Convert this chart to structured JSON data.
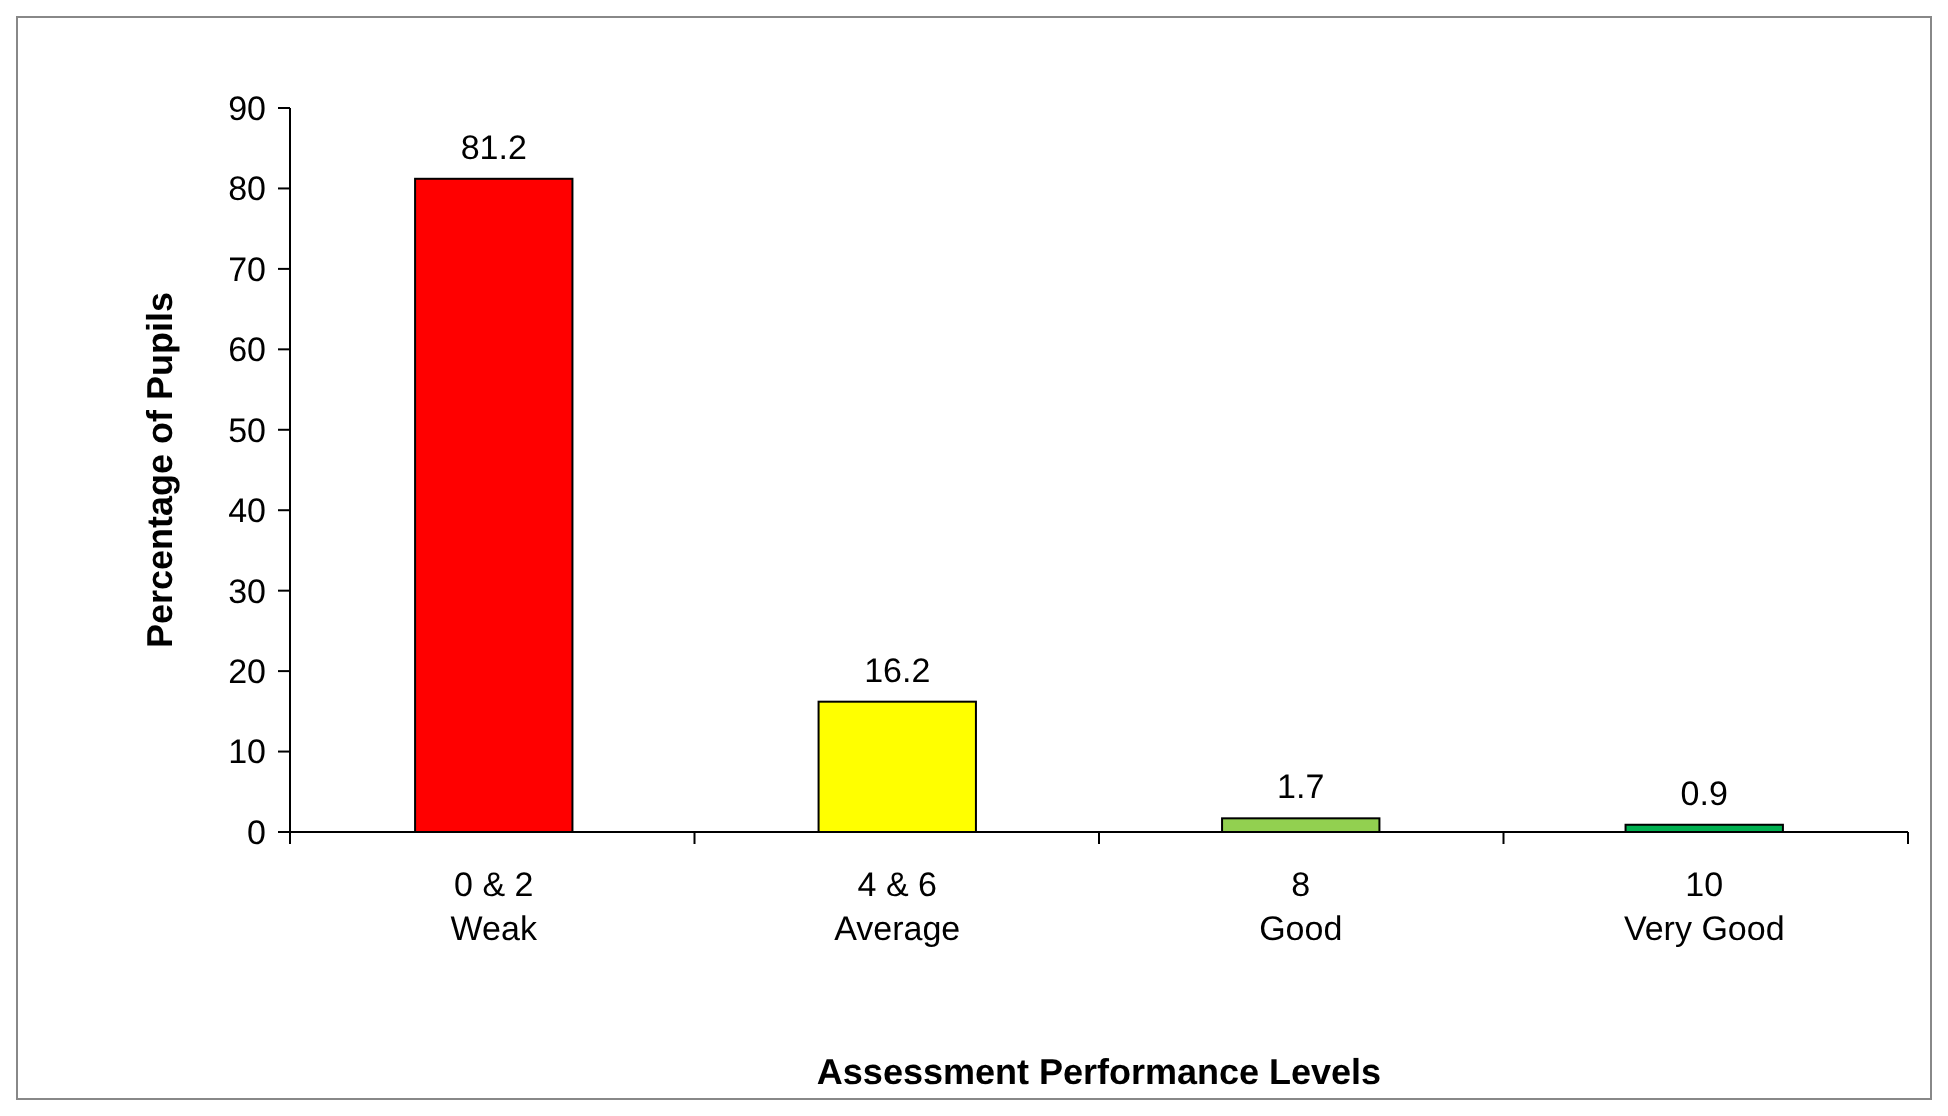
{
  "chart_data": {
    "type": "bar",
    "xlabel": "Assessment Performance Levels",
    "ylabel": "Percentage of Pupils",
    "categories": [
      "0 & 2\nWeak",
      "4 & 6\nAverage",
      "8\nGood",
      "10\nVery Good"
    ],
    "values": [
      81.2,
      16.2,
      1.7,
      0.9
    ],
    "colors": [
      "#ff0000",
      "#ffff00",
      "#92d050",
      "#00b050"
    ],
    "ylim": [
      0,
      90
    ],
    "yticks": [
      0,
      10,
      20,
      30,
      40,
      50,
      60,
      70,
      80,
      90
    ],
    "data_labels": true
  }
}
